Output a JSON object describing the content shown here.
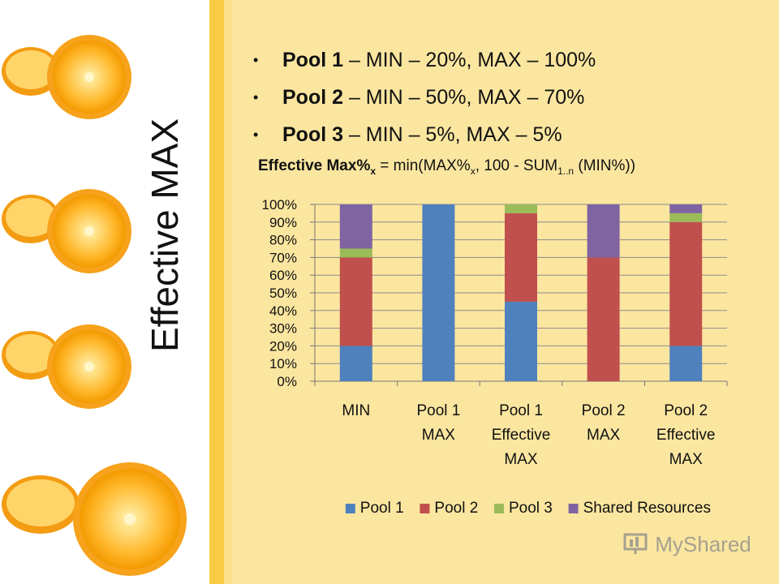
{
  "slide": {
    "vertical_title": "Effective MAX",
    "bullets": [
      {
        "pool": "Pool 1",
        "rest": " – MIN – 20%, MAX – 100%"
      },
      {
        "pool": "Pool 2",
        "rest": " – MIN – 50%, MAX – 70%"
      },
      {
        "pool": "Pool 3",
        "rest": " – MIN – 5%, MAX – 5%"
      }
    ],
    "formula": {
      "bold": "Effective Max%",
      "bold_sub": "x",
      "part1": " = min(MAX%",
      "sub1": "x",
      "part2": ", 100 - SUM",
      "sub2": "1..n",
      "part3": " (MIN%))"
    },
    "watermark": "MyShared"
  },
  "colors": {
    "pool1": "#4f81bd",
    "pool2": "#c0504d",
    "pool3": "#9bbb59",
    "shared": "#8064a2"
  },
  "chart_data": {
    "type": "bar",
    "stacked": true,
    "categories": [
      [
        "MIN"
      ],
      [
        "Pool 1",
        "MAX"
      ],
      [
        "Pool 1",
        "Effective",
        "MAX"
      ],
      [
        "Pool 2",
        "MAX"
      ],
      [
        "Pool 2",
        "Effective",
        "MAX"
      ]
    ],
    "series": [
      {
        "name": "Pool 1",
        "color": "#4f81bd",
        "values": [
          20,
          100,
          45,
          0,
          20
        ]
      },
      {
        "name": "Pool 2",
        "color": "#c0504d",
        "values": [
          50,
          0,
          50,
          70,
          70
        ]
      },
      {
        "name": "Pool 3",
        "color": "#9bbb59",
        "values": [
          5,
          0,
          5,
          0,
          5
        ]
      },
      {
        "name": "Shared Resources",
        "color": "#8064a2",
        "values": [
          25,
          0,
          0,
          30,
          5
        ]
      }
    ],
    "yticks": [
      "0%",
      "10%",
      "20%",
      "30%",
      "40%",
      "50%",
      "60%",
      "70%",
      "80%",
      "90%",
      "100%"
    ],
    "ylim": [
      0,
      100
    ],
    "grid": true,
    "legend_position": "bottom"
  }
}
